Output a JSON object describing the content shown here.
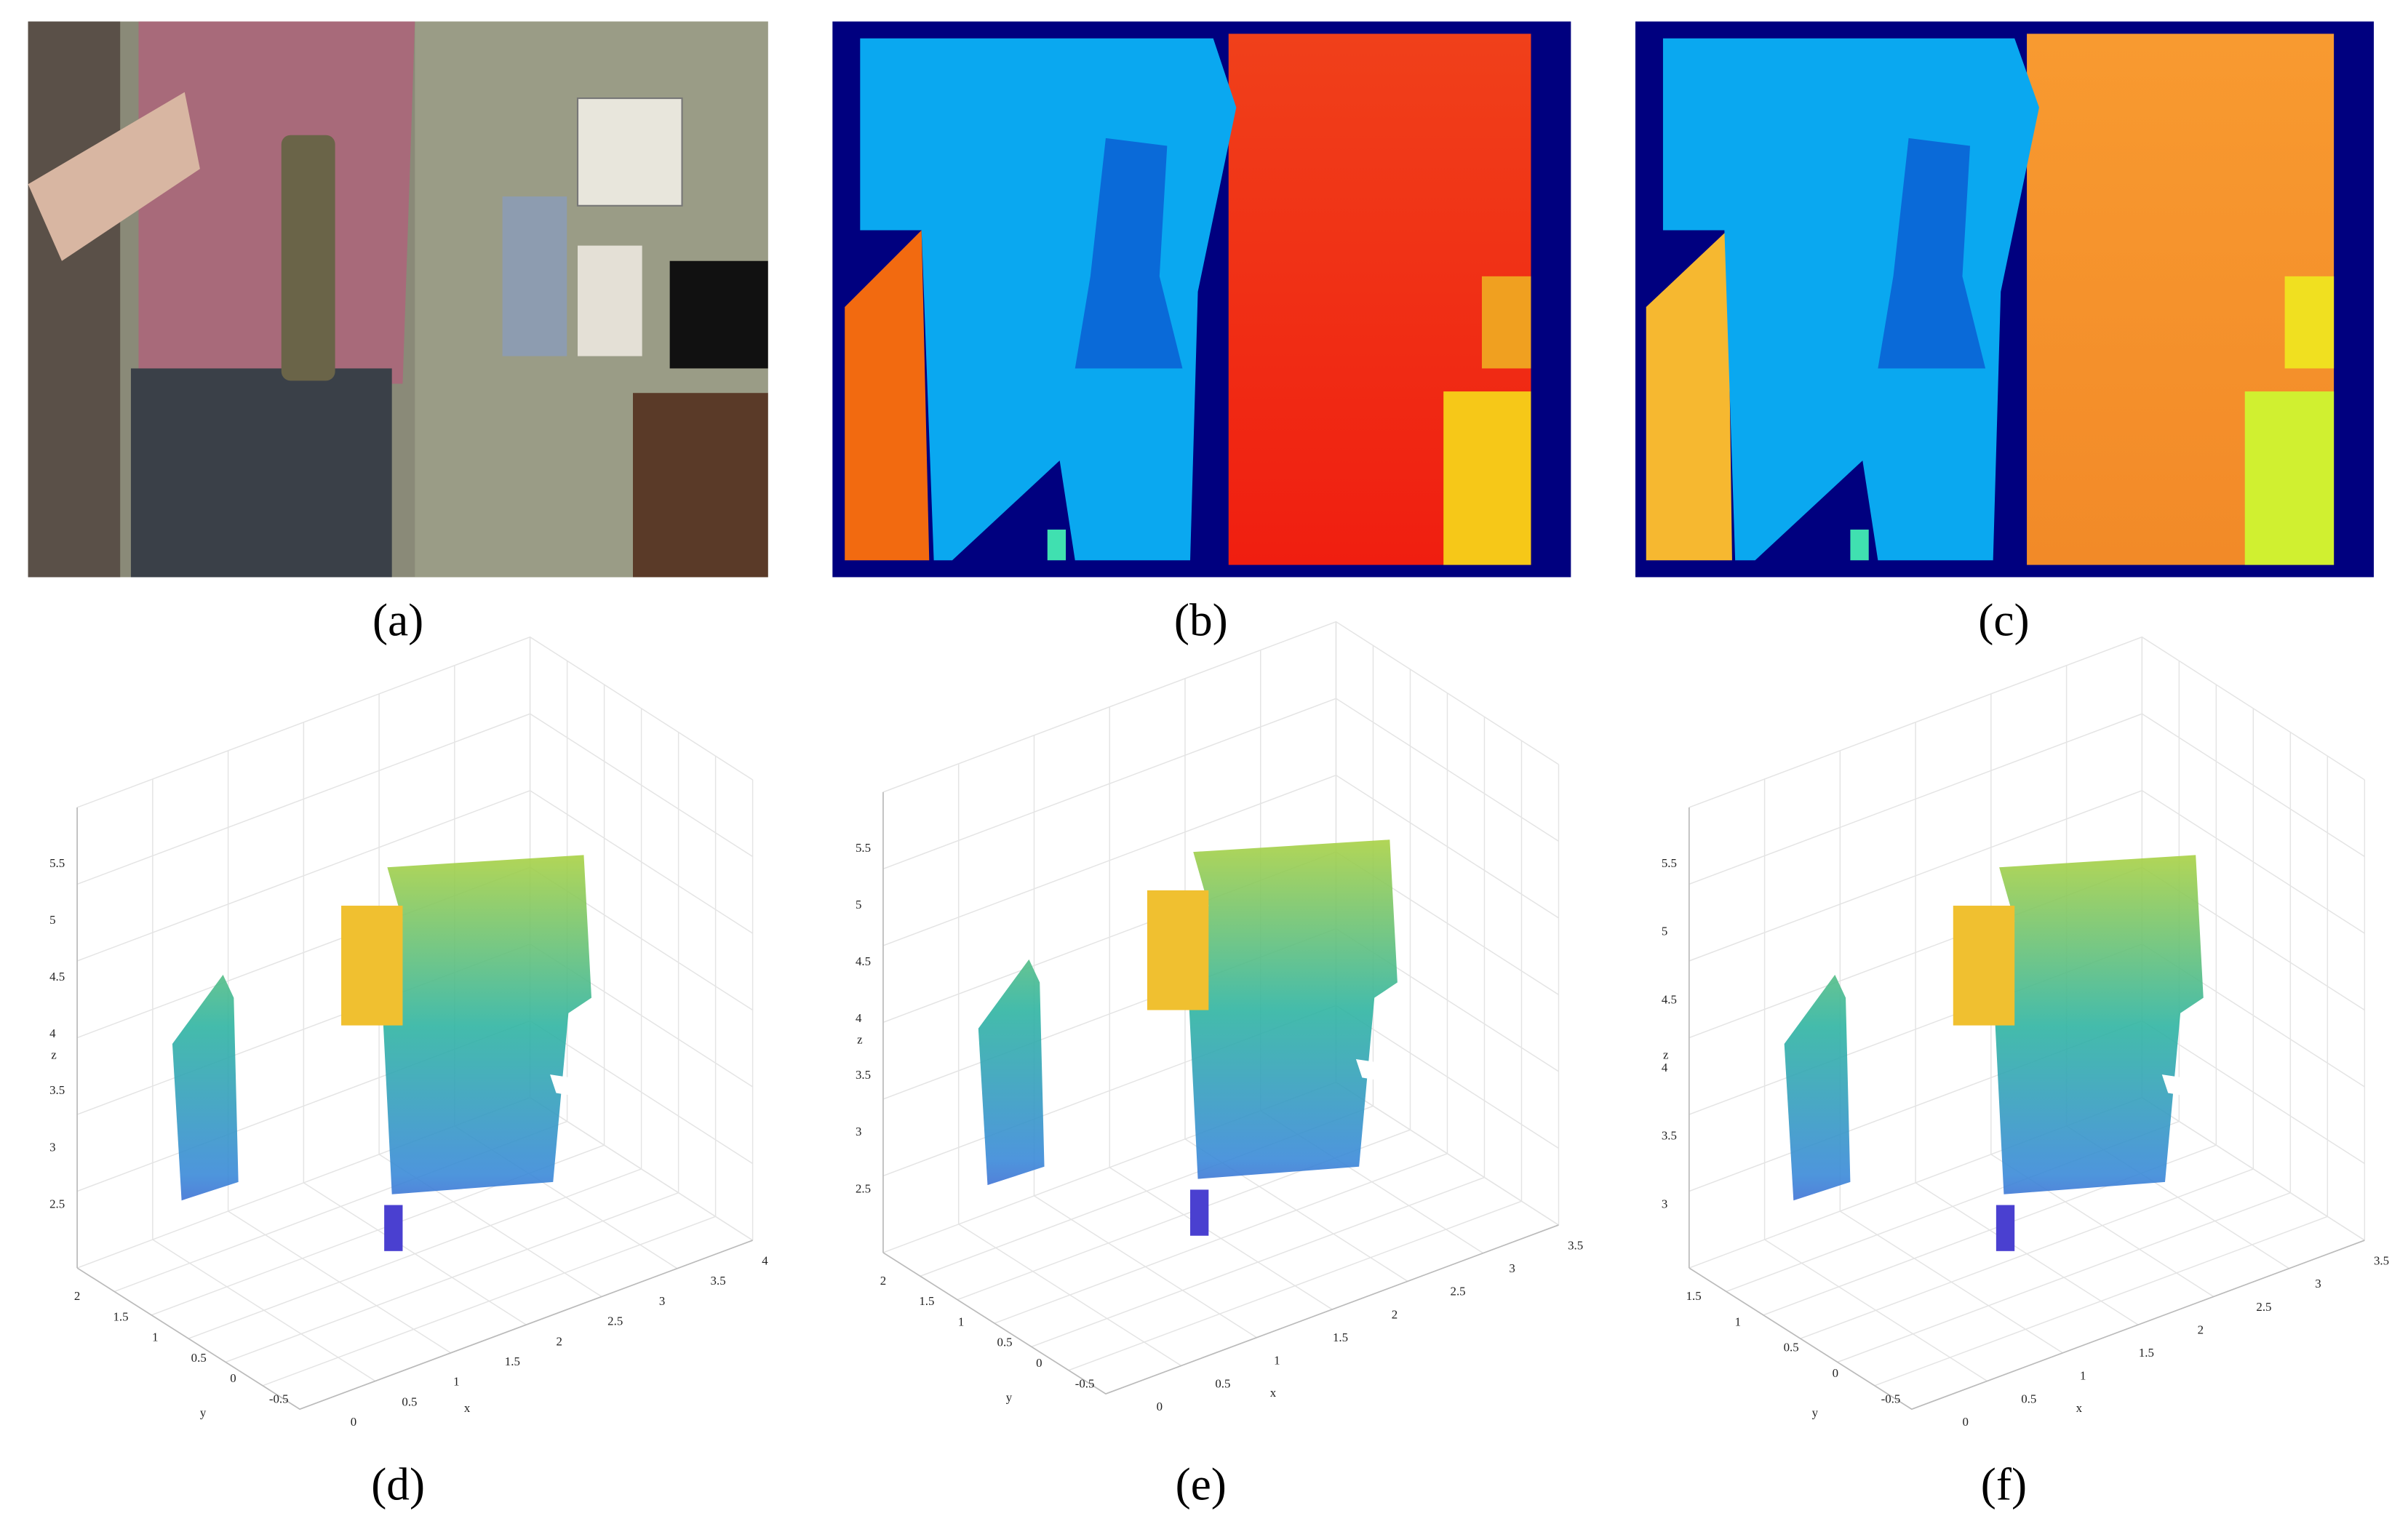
{
  "panels": [
    {
      "label": "(a)"
    },
    {
      "label": "(b)"
    },
    {
      "label": "(c)"
    },
    {
      "label": "(d)"
    },
    {
      "label": "(e)"
    },
    {
      "label": "(f)"
    }
  ],
  "plots": [
    {
      "zlabel": "z",
      "ylabel": "y",
      "xlabel": "x",
      "zticks": [
        2.5,
        3,
        3.5,
        4,
        4.5,
        5,
        5.5
      ],
      "yticks": [
        2,
        1.5,
        1,
        0.5,
        0,
        -0.5
      ],
      "xticks": [
        0,
        0.5,
        1,
        1.5,
        2,
        2.5,
        3,
        3.5,
        4
      ]
    },
    {
      "zlabel": "z",
      "ylabel": "y",
      "xlabel": "x",
      "zticks": [
        2.5,
        3,
        3.5,
        4,
        4.5,
        5,
        5.5
      ],
      "yticks": [
        2,
        1.5,
        1,
        0.5,
        0,
        -0.5
      ],
      "xticks": [
        0,
        0.5,
        1,
        1.5,
        2,
        2.5,
        3,
        3.5
      ]
    },
    {
      "zlabel": "z",
      "ylabel": "y",
      "xlabel": "x",
      "zticks": [
        3,
        3.5,
        4,
        4.5,
        5,
        5.5
      ],
      "yticks": [
        1.5,
        1,
        0.5,
        0,
        -0.5
      ],
      "xticks": [
        0,
        0.5,
        1,
        1.5,
        2,
        2.5,
        3,
        3.5
      ]
    }
  ]
}
